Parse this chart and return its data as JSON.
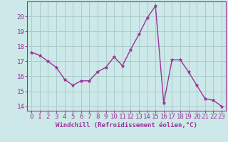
{
  "x": [
    0,
    1,
    2,
    3,
    4,
    5,
    6,
    7,
    8,
    9,
    10,
    11,
    12,
    13,
    14,
    15,
    16,
    17,
    18,
    19,
    20,
    21,
    22,
    23
  ],
  "y": [
    17.6,
    17.4,
    17.0,
    16.6,
    15.8,
    15.4,
    15.7,
    15.7,
    16.3,
    16.6,
    17.3,
    16.7,
    17.8,
    18.8,
    19.9,
    20.7,
    14.2,
    17.1,
    17.1,
    16.3,
    15.4,
    14.5,
    14.4,
    14.0
  ],
  "line_color": "#993399",
  "marker": "*",
  "marker_size": 3.5,
  "bg_color": "#cce8e8",
  "grid_color": "#aacccc",
  "xlabel": "Windchill (Refroidissement éolien,°C)",
  "xlabel_fontsize": 6.5,
  "ylabel_ticks": [
    14,
    15,
    16,
    17,
    18,
    19,
    20
  ],
  "xlim": [
    -0.5,
    23.5
  ],
  "ylim": [
    13.7,
    21.0
  ],
  "tick_fontsize": 6.5,
  "axis_label_color": "#993399",
  "tick_color": "#993399",
  "spine_color": "#993399",
  "line_width": 1.0
}
